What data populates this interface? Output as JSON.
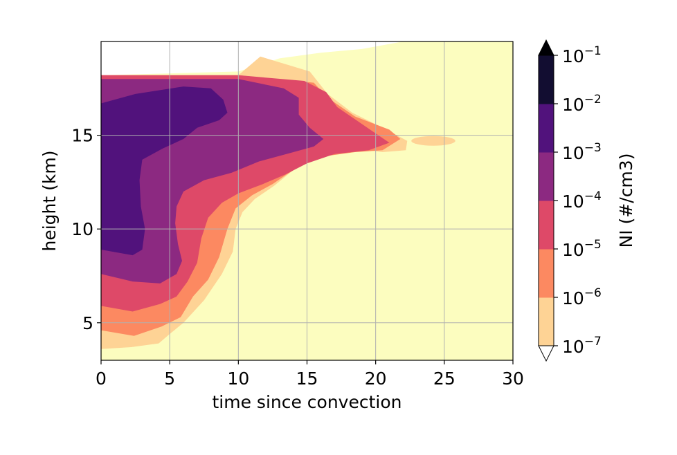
{
  "chart_data": {
    "type": "filled-contour",
    "xlabel": "time since convection",
    "ylabel": "height (km)",
    "xlim": [
      0,
      30
    ],
    "ylim": [
      3,
      20
    ],
    "xticks": [
      0,
      5,
      10,
      15,
      20,
      25,
      30
    ],
    "yticks": [
      5,
      10,
      15
    ],
    "grid": true,
    "colorbar": {
      "label": "NI (#/cm3)",
      "scale": "log",
      "extend": "both",
      "levels": [
        {
          "base": "10",
          "exp": "−7"
        },
        {
          "base": "10",
          "exp": "−6"
        },
        {
          "base": "10",
          "exp": "−5"
        },
        {
          "base": "10",
          "exp": "−4"
        },
        {
          "base": "10",
          "exp": "−3"
        },
        {
          "base": "10",
          "exp": "−2"
        },
        {
          "base": "10",
          "exp": "−1"
        }
      ],
      "colors": [
        "#fcfdbf",
        "#fed395",
        "#fc8961",
        "#de4968",
        "#8c2981",
        "#51127c",
        "#120d31",
        "#000004"
      ],
      "under_color": "#ffffff"
    },
    "regions": [
      {
        "level": "10^-7 to 10^-6",
        "color": "#fed395",
        "points": [
          [
            0,
            3.6
          ],
          [
            2.2,
            3.7
          ],
          [
            4.2,
            3.9
          ],
          [
            5,
            4.4
          ],
          [
            6,
            5
          ],
          [
            7.5,
            6.2
          ],
          [
            8.8,
            7.6
          ],
          [
            9.6,
            8.8
          ],
          [
            9.8,
            10
          ],
          [
            10.3,
            10.9
          ],
          [
            11.2,
            11.6
          ],
          [
            12.6,
            12.3
          ],
          [
            13.6,
            12.9
          ],
          [
            14.6,
            13.5
          ],
          [
            16.5,
            14
          ],
          [
            18.5,
            14.3
          ],
          [
            20.5,
            14.1
          ],
          [
            22.2,
            14.2
          ],
          [
            22.3,
            14.7
          ],
          [
            20.8,
            15.3
          ],
          [
            18.3,
            16.2
          ],
          [
            16.5,
            17.2
          ],
          [
            15.2,
            18.4
          ],
          [
            11.6,
            19.2
          ],
          [
            10,
            18.2
          ],
          [
            0,
            18.2
          ]
        ]
      },
      {
        "level": "10^-6 to 10^-5",
        "color": "#fc8961",
        "points": [
          [
            0,
            4.6
          ],
          [
            2.4,
            4.3
          ],
          [
            4.4,
            4.8
          ],
          [
            5.8,
            5.3
          ],
          [
            6.7,
            6.4
          ],
          [
            7.8,
            7.3
          ],
          [
            8.6,
            8.5
          ],
          [
            9.2,
            10
          ],
          [
            9.8,
            11.1
          ],
          [
            11,
            11.8
          ],
          [
            12.5,
            12.4
          ],
          [
            13.5,
            12.9
          ],
          [
            14.6,
            13.4
          ],
          [
            16.5,
            13.9
          ],
          [
            18.5,
            14.1
          ],
          [
            20.5,
            14.2
          ],
          [
            21.8,
            14.8
          ],
          [
            21,
            15.3
          ],
          [
            18.5,
            16
          ],
          [
            16.5,
            17
          ],
          [
            15.5,
            17.8
          ],
          [
            10,
            18.2
          ],
          [
            0,
            18.2
          ]
        ]
      },
      {
        "level": "10^-5 to 10^-4",
        "color": "#de4968",
        "points": [
          [
            0,
            5.9
          ],
          [
            2.3,
            5.6
          ],
          [
            4.3,
            6
          ],
          [
            5.5,
            6.4
          ],
          [
            6.3,
            7.2
          ],
          [
            7,
            8.2
          ],
          [
            7.3,
            9.5
          ],
          [
            7.8,
            10.6
          ],
          [
            8.8,
            11.4
          ],
          [
            10,
            11.9
          ],
          [
            11.8,
            12.4
          ],
          [
            13.4,
            12.9
          ],
          [
            15,
            13.5
          ],
          [
            17,
            14
          ],
          [
            19.5,
            14.2
          ],
          [
            21,
            14.6
          ],
          [
            19.6,
            15.3
          ],
          [
            17.2,
            16.5
          ],
          [
            16.4,
            17.3
          ],
          [
            14.8,
            17.9
          ],
          [
            10,
            18.2
          ],
          [
            0,
            18.2
          ]
        ]
      },
      {
        "level": "10^-4 to 10^-3",
        "color": "#8c2981",
        "points": [
          [
            0,
            7.6
          ],
          [
            2.3,
            7.2
          ],
          [
            4.3,
            7.1
          ],
          [
            5.5,
            7.6
          ],
          [
            5.9,
            8.3
          ],
          [
            5.6,
            9.2
          ],
          [
            5.4,
            10.3
          ],
          [
            5.5,
            11.2
          ],
          [
            6,
            12
          ],
          [
            7.5,
            12.6
          ],
          [
            9.5,
            13
          ],
          [
            11.5,
            13.6
          ],
          [
            13.5,
            14
          ],
          [
            15.5,
            14.4
          ],
          [
            16.2,
            14.8
          ],
          [
            15.2,
            15.4
          ],
          [
            14.4,
            16.1
          ],
          [
            14.4,
            17
          ],
          [
            13.3,
            17.5
          ],
          [
            10,
            18
          ],
          [
            0,
            18
          ]
        ]
      },
      {
        "level": "10^-3 to 10^-2",
        "color": "#51127c",
        "points": [
          [
            0,
            8.9
          ],
          [
            2.3,
            8.6
          ],
          [
            3,
            8.9
          ],
          [
            3.2,
            10
          ],
          [
            2.9,
            11.2
          ],
          [
            2.8,
            12.6
          ],
          [
            3,
            13.7
          ],
          [
            4.5,
            14.3
          ],
          [
            6,
            14.8
          ],
          [
            7,
            15.4
          ],
          [
            8.6,
            15.8
          ],
          [
            9.2,
            16.2
          ],
          [
            8.9,
            16.9
          ],
          [
            8,
            17.5
          ],
          [
            6,
            17.6
          ],
          [
            2.5,
            17.2
          ],
          [
            0,
            16.7
          ]
        ]
      }
    ]
  }
}
